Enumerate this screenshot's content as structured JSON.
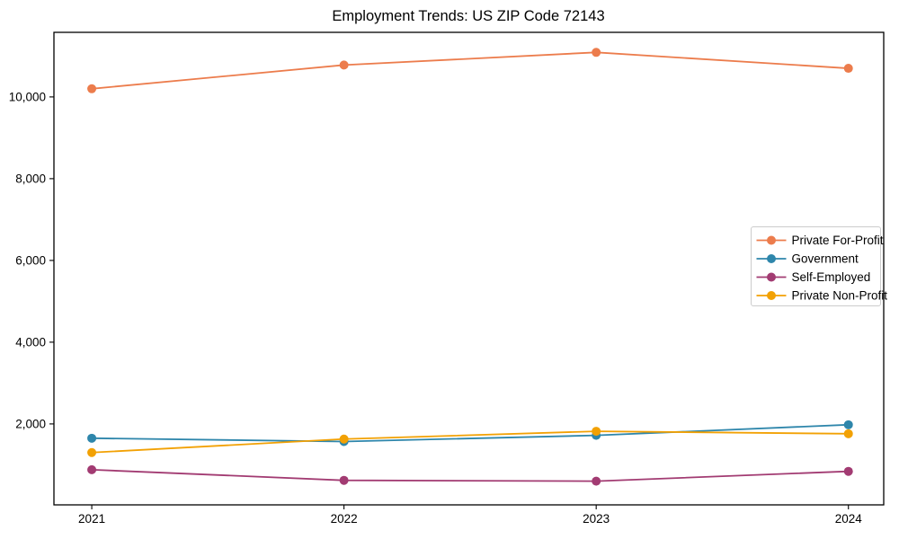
{
  "chart_data": {
    "type": "line",
    "title": "Employment Trends: US ZIP Code 72143",
    "xlabel": "",
    "ylabel": "",
    "grid": false,
    "legend_position": "center right",
    "categories": [
      "2021",
      "2022",
      "2023",
      "2024"
    ],
    "x": [
      2021,
      2022,
      2023,
      2024
    ],
    "xlim": [
      2020.85,
      2024.14
    ],
    "ylim": [
      20,
      11580
    ],
    "yticks": [
      2000,
      4000,
      6000,
      8000,
      10000
    ],
    "ytick_labels": [
      "2,000",
      "4,000",
      "6,000",
      "8,000",
      "10,000"
    ],
    "series": [
      {
        "name": "Private For-Profit",
        "color": "#EC7C4C",
        "values": [
          10200,
          10780,
          11090,
          10700
        ]
      },
      {
        "name": "Government",
        "color": "#2E86AB",
        "values": [
          1650,
          1570,
          1720,
          1980
        ]
      },
      {
        "name": "Self-Employed",
        "color": "#A23B72",
        "values": [
          880,
          620,
          600,
          840
        ]
      },
      {
        "name": "Private Non-Profit",
        "color": "#F2A104",
        "values": [
          1300,
          1630,
          1820,
          1760
        ]
      }
    ],
    "frame_color": "#000000",
    "legend_border_color": "#cccccc"
  }
}
